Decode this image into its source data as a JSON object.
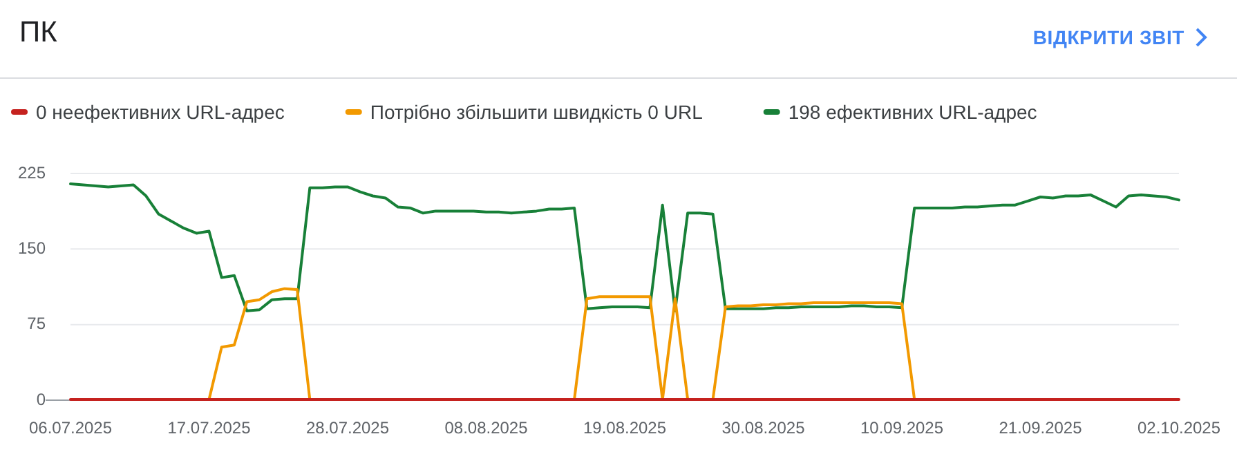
{
  "chart_data": {
    "type": "line",
    "title": "ПК",
    "annotations": [
      "ВІДКРИТИ ЗВІТ"
    ],
    "x": [
      "2025-07-06",
      "2025-07-07",
      "2025-07-08",
      "2025-07-09",
      "2025-07-10",
      "2025-07-11",
      "2025-07-12",
      "2025-07-13",
      "2025-07-14",
      "2025-07-15",
      "2025-07-16",
      "2025-07-17",
      "2025-07-18",
      "2025-07-19",
      "2025-07-20",
      "2025-07-21",
      "2025-07-22",
      "2025-07-23",
      "2025-07-24",
      "2025-07-25",
      "2025-07-26",
      "2025-07-27",
      "2025-07-28",
      "2025-07-29",
      "2025-07-30",
      "2025-07-31",
      "2025-08-01",
      "2025-08-02",
      "2025-08-03",
      "2025-08-04",
      "2025-08-05",
      "2025-08-06",
      "2025-08-07",
      "2025-08-08",
      "2025-08-09",
      "2025-08-10",
      "2025-08-11",
      "2025-08-12",
      "2025-08-13",
      "2025-08-14",
      "2025-08-15",
      "2025-08-16",
      "2025-08-17",
      "2025-08-18",
      "2025-08-19",
      "2025-08-20",
      "2025-08-21",
      "2025-08-22",
      "2025-08-23",
      "2025-08-24",
      "2025-08-25",
      "2025-08-26",
      "2025-08-27",
      "2025-08-28",
      "2025-08-29",
      "2025-08-30",
      "2025-08-31",
      "2025-09-01",
      "2025-09-02",
      "2025-09-03",
      "2025-09-04",
      "2025-09-05",
      "2025-09-06",
      "2025-09-07",
      "2025-09-08",
      "2025-09-09",
      "2025-09-10",
      "2025-09-11",
      "2025-09-12",
      "2025-09-13",
      "2025-09-14",
      "2025-09-15",
      "2025-09-16",
      "2025-09-17",
      "2025-09-18",
      "2025-09-19",
      "2025-09-20",
      "2025-09-21",
      "2025-09-22",
      "2025-09-23",
      "2025-09-24",
      "2025-09-25",
      "2025-09-26",
      "2025-09-27",
      "2025-09-28",
      "2025-09-29",
      "2025-09-30",
      "2025-10-01",
      "2025-10-02"
    ],
    "series": [
      {
        "name": "0 неефективних URL-адрес",
        "color": "#c5221f",
        "values": [
          0,
          0,
          0,
          0,
          0,
          0,
          0,
          0,
          0,
          0,
          0,
          0,
          0,
          0,
          0,
          0,
          0,
          0,
          0,
          0,
          0,
          0,
          0,
          0,
          0,
          0,
          0,
          0,
          0,
          0,
          0,
          0,
          0,
          0,
          0,
          0,
          0,
          0,
          0,
          0,
          0,
          0,
          0,
          0,
          0,
          0,
          0,
          0,
          0,
          0,
          0,
          0,
          0,
          0,
          0,
          0,
          0,
          0,
          0,
          0,
          0,
          0,
          0,
          0,
          0,
          0,
          0,
          0,
          0,
          0,
          0,
          0,
          0,
          0,
          0,
          0,
          0,
          0,
          0,
          0,
          0,
          0,
          0,
          0,
          0,
          0,
          0,
          0,
          0
        ]
      },
      {
        "name": "Потрібно збільшити швидкість 0 URL",
        "color": "#f29900",
        "values": [
          null,
          null,
          null,
          null,
          null,
          null,
          null,
          null,
          null,
          null,
          null,
          0,
          52,
          54,
          97,
          99,
          107,
          110,
          109,
          0,
          null,
          null,
          null,
          null,
          null,
          null,
          null,
          null,
          null,
          null,
          null,
          null,
          null,
          null,
          null,
          null,
          null,
          null,
          null,
          null,
          0,
          100,
          102,
          102,
          102,
          102,
          102,
          0,
          100,
          0,
          null,
          0,
          92,
          93,
          93,
          94,
          94,
          95,
          95,
          96,
          96,
          96,
          96,
          96,
          96,
          96,
          95,
          0,
          null,
          null,
          null,
          null,
          null,
          null,
          null,
          null,
          null,
          null,
          null,
          null,
          null,
          null,
          null,
          null,
          null,
          null,
          null,
          null,
          null
        ]
      },
      {
        "name": "198 ефективних URL-адрес",
        "color": "#188038",
        "values": [
          214,
          213,
          212,
          211,
          212,
          213,
          202,
          184,
          177,
          170,
          165,
          167,
          121,
          123,
          88,
          89,
          99,
          100,
          100,
          210,
          210,
          211,
          211,
          206,
          202,
          200,
          191,
          190,
          185,
          187,
          187,
          187,
          187,
          186,
          186,
          185,
          186,
          187,
          189,
          189,
          190,
          90,
          91,
          92,
          92,
          92,
          91,
          193,
          88,
          185,
          185,
          184,
          90,
          90,
          90,
          90,
          91,
          91,
          92,
          92,
          92,
          92,
          93,
          93,
          92,
          92,
          91,
          190,
          190,
          190,
          190,
          191,
          191,
          192,
          193,
          193,
          197,
          201,
          200,
          202,
          202,
          203,
          197,
          191,
          202,
          203,
          202,
          201,
          198
        ]
      }
    ],
    "xlim": [
      "2025-07-06",
      "2025-10-02"
    ],
    "xticks": [
      {
        "value": "2025-07-06",
        "label": "06.07.2025"
      },
      {
        "value": "2025-07-17",
        "label": "17.07.2025"
      },
      {
        "value": "2025-07-28",
        "label": "28.07.2025"
      },
      {
        "value": "2025-08-08",
        "label": "08.08.2025"
      },
      {
        "value": "2025-08-19",
        "label": "19.08.2025"
      },
      {
        "value": "2025-08-30",
        "label": "30.08.2025"
      },
      {
        "value": "2025-09-10",
        "label": "10.09.2025"
      },
      {
        "value": "2025-09-21",
        "label": "21.09.2025"
      },
      {
        "value": "2025-10-02",
        "label": "02.10.2025"
      }
    ],
    "ylim": [
      0,
      225
    ],
    "yticks": [
      0,
      75,
      150,
      225
    ],
    "grid": "y",
    "legend": "top"
  }
}
